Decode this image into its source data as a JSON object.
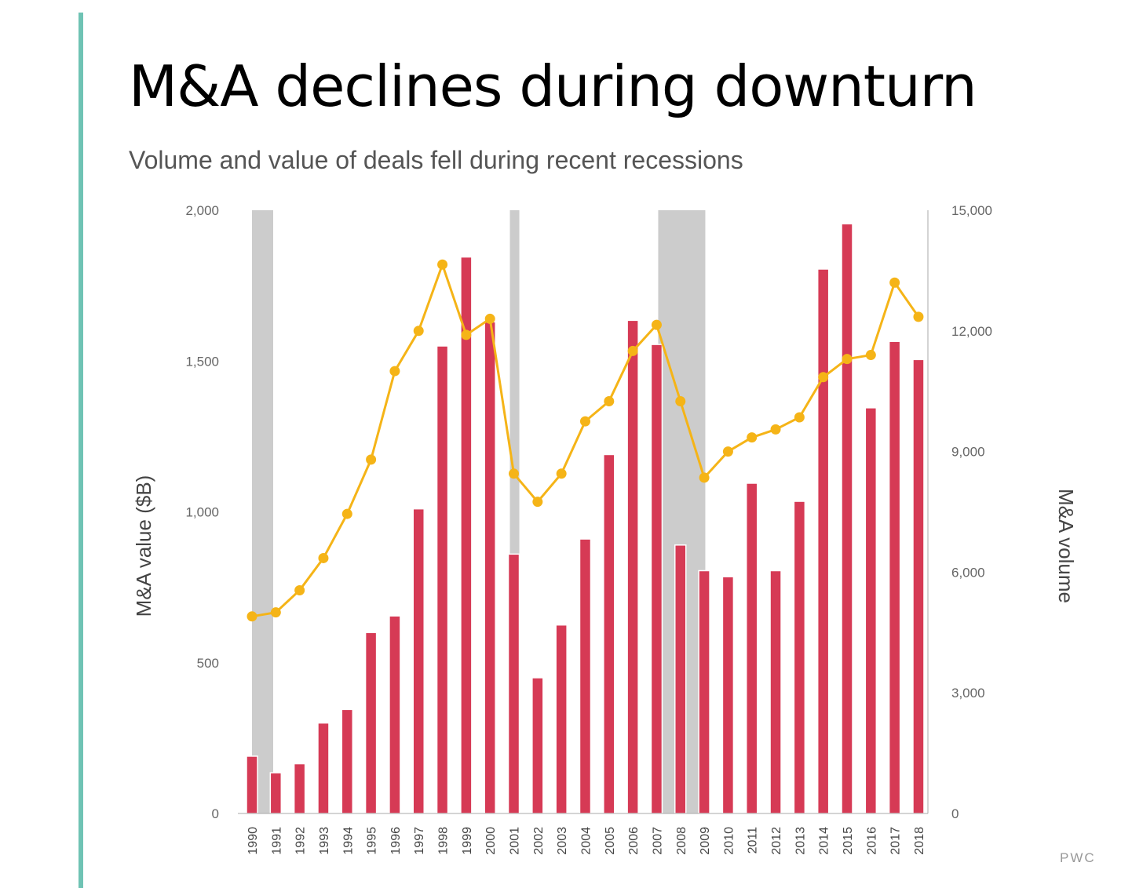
{
  "header": {
    "title": "M&A declines during downturn",
    "subtitle": "Volume and value of deals fell during recent recessions"
  },
  "source_label": "PWC",
  "colors": {
    "accent": "#6fc3b4",
    "bar": "#d63a55",
    "line": "#f5b417",
    "recession": "#cccccc",
    "axis": "#aaaaaa"
  },
  "chart_data": {
    "type": "bar+line",
    "categories": [
      "1990",
      "1991",
      "1992",
      "1993",
      "1994",
      "1995",
      "1996",
      "1997",
      "1998",
      "1999",
      "2000",
      "2001",
      "2002",
      "2003",
      "2004",
      "2005",
      "2006",
      "2007",
      "2008",
      "2009",
      "2010",
      "2011",
      "2012",
      "2013",
      "2014",
      "2015",
      "2016",
      "2017",
      "2018"
    ],
    "series": [
      {
        "name": "M&A value ($B)",
        "type": "bar",
        "axis": "left",
        "values": [
          190,
          135,
          165,
          300,
          345,
          600,
          655,
          1010,
          1550,
          1845,
          1630,
          860,
          450,
          625,
          910,
          1190,
          1635,
          1555,
          890,
          805,
          785,
          1095,
          805,
          1035,
          1805,
          1955,
          1345,
          1565,
          1505
        ]
      },
      {
        "name": "M&A volume",
        "type": "line",
        "axis": "right",
        "values": [
          4900,
          5000,
          5550,
          6350,
          7450,
          8800,
          11000,
          12000,
          13650,
          11900,
          12300,
          8450,
          7750,
          8450,
          9750,
          10250,
          11500,
          12150,
          10250,
          8350,
          9000,
          9350,
          9550,
          9850,
          10850,
          11300,
          11400,
          13200,
          12350
        ]
      }
    ],
    "recession_periods": [
      [
        "1990",
        "1991"
      ],
      [
        "2001",
        "2001"
      ],
      [
        "2007",
        "2009"
      ]
    ],
    "y_left": {
      "label": "M&A value ($B)",
      "range": [
        0,
        2000
      ],
      "ticks": [
        0,
        500,
        1000,
        1500,
        2000
      ],
      "tick_labels": [
        "0",
        "500",
        "1,000",
        "1,500",
        "2,000"
      ]
    },
    "y_right": {
      "label": "M&A volume",
      "range": [
        0,
        15000
      ],
      "ticks": [
        0,
        3000,
        6000,
        9000,
        12000,
        15000
      ],
      "tick_labels": [
        "0",
        "3,000",
        "6,000",
        "9,000",
        "12,000",
        "15,000"
      ]
    },
    "grid": false
  }
}
